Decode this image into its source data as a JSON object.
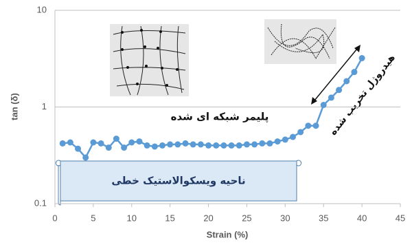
{
  "chart_data": {
    "type": "line",
    "x_label": "Strain (%)",
    "y_label": "tan (δ)",
    "x": [
      1,
      2,
      3,
      4,
      5,
      6,
      7,
      8,
      9,
      10,
      11,
      12,
      13,
      14,
      15,
      16,
      17,
      18,
      19,
      20,
      21,
      22,
      23,
      24,
      25,
      26,
      27,
      28,
      29,
      30,
      31,
      32,
      33,
      34,
      35,
      36,
      37,
      38,
      39,
      40
    ],
    "series": [
      {
        "color": "#5b9bd5",
        "values": [
          0.42,
          0.43,
          0.37,
          0.3,
          0.43,
          0.42,
          0.38,
          0.47,
          0.38,
          0.43,
          0.44,
          0.4,
          0.39,
          0.4,
          0.41,
          0.41,
          0.42,
          0.41,
          0.41,
          0.4,
          0.4,
          0.4,
          0.4,
          0.4,
          0.41,
          0.41,
          0.42,
          0.42,
          0.44,
          0.46,
          0.49,
          0.55,
          0.64,
          0.64,
          1.05,
          1.25,
          1.5,
          1.85,
          2.3,
          3.2
        ]
      }
    ],
    "xlim": [
      0,
      45
    ],
    "xticks": [
      0,
      5,
      10,
      15,
      20,
      25,
      30,
      35,
      40,
      45
    ],
    "ylim": [
      0.1,
      10
    ],
    "yticks": [
      0.1,
      1,
      10
    ],
    "log_y": true,
    "grid": true,
    "annotations": [
      "پلیمر شبکه ای شده",
      "ناحیه ویسکوالاستیک خطی",
      "هیدروژل تخریب شده"
    ]
  }
}
